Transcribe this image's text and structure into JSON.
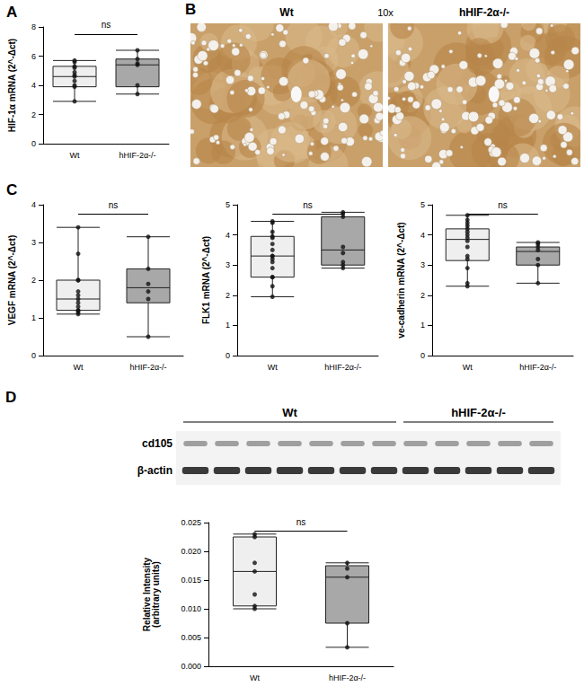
{
  "chart_data": [
    {
      "type": "boxplot",
      "title": "A",
      "categories": [
        "Wt",
        "hHIF-2α-/-"
      ],
      "ylabel": "HIF-1α mRNA (2^-Δct)",
      "ylim": [
        0,
        8
      ],
      "yticks": [
        0,
        2,
        4,
        6,
        8
      ],
      "boxes": [
        [
          2.9,
          3.9,
          4.6,
          5.3,
          5.7
        ],
        [
          3.4,
          3.9,
          5.4,
          5.8,
          6.4
        ]
      ],
      "points": [
        [
          2.9,
          3.9,
          4.0,
          4.3,
          4.6,
          4.7,
          4.9,
          5.2,
          5.3,
          5.6,
          5.7
        ],
        [
          3.4,
          4.0,
          5.4,
          5.5,
          5.8,
          6.4
        ]
      ],
      "colors": [
        "#efefef",
        "#a8a8a8"
      ],
      "annotations": [
        "ns"
      ]
    },
    {
      "type": "boxplot",
      "title": "C",
      "categories": [
        "Wt",
        "hHIF-2α-/-"
      ],
      "ylabel": "VEGF mRNA (2^-Δct)",
      "ylim": [
        0,
        4
      ],
      "yticks": [
        0,
        1,
        2,
        3,
        4
      ],
      "boxes": [
        [
          1.1,
          1.2,
          1.5,
          2.0,
          3.4
        ],
        [
          0.5,
          1.4,
          1.8,
          2.3,
          3.15
        ]
      ],
      "points": [
        [
          1.1,
          1.15,
          1.2,
          1.2,
          1.3,
          1.4,
          1.5,
          1.6,
          1.7,
          2.0,
          2.0,
          2.7,
          3.4
        ],
        [
          0.5,
          1.5,
          1.7,
          1.9,
          2.3,
          3.15
        ]
      ],
      "colors": [
        "#efefef",
        "#a8a8a8"
      ],
      "annotations": [
        "ns"
      ]
    },
    {
      "type": "boxplot",
      "categories": [
        "Wt",
        "hHIF-2α-/-"
      ],
      "ylabel": "FLK1 mRNA (2^-Δct)",
      "ylim": [
        0,
        5
      ],
      "yticks": [
        0,
        1,
        2,
        3,
        4,
        5
      ],
      "boxes": [
        [
          1.95,
          2.6,
          3.3,
          3.95,
          4.45
        ],
        [
          2.9,
          3.0,
          3.5,
          4.6,
          4.75
        ]
      ],
      "points": [
        [
          1.95,
          2.3,
          2.6,
          2.6,
          2.9,
          3.1,
          3.2,
          3.3,
          3.3,
          3.5,
          3.7,
          3.9,
          3.95,
          4.1,
          4.4,
          4.45
        ],
        [
          2.9,
          3.0,
          3.1,
          3.4,
          3.6,
          4.6,
          4.7,
          4.75
        ]
      ],
      "colors": [
        "#efefef",
        "#a8a8a8"
      ],
      "annotations": [
        "ns"
      ]
    },
    {
      "type": "boxplot",
      "categories": [
        "Wt",
        "hHIF-2α-/-"
      ],
      "ylabel": "ve-cadherin mRNA (2^-Δct)",
      "ylim": [
        0,
        5
      ],
      "yticks": [
        0,
        1,
        2,
        3,
        4,
        5
      ],
      "boxes": [
        [
          2.3,
          3.15,
          3.85,
          4.2,
          4.65
        ],
        [
          2.4,
          3.0,
          3.45,
          3.6,
          3.75
        ]
      ],
      "points": [
        [
          2.3,
          2.4,
          2.9,
          3.2,
          3.3,
          3.6,
          3.8,
          3.9,
          4.0,
          4.1,
          4.2,
          4.3,
          4.4,
          4.5,
          4.65
        ],
        [
          2.4,
          3.0,
          3.2,
          3.5,
          3.6,
          3.7,
          3.75
        ]
      ],
      "colors": [
        "#efefef",
        "#a8a8a8"
      ],
      "annotations": [
        "ns"
      ]
    },
    {
      "type": "boxplot",
      "categories": [
        "Wt",
        "hHIF-2α-/-"
      ],
      "ylabel": "Relative Intensity\n(arbitrary units)",
      "ylim": [
        0,
        0.025
      ],
      "yticks": [
        {
          "value": 0,
          "label": "0.000"
        },
        {
          "value": 0.005,
          "label": "0.005"
        },
        {
          "value": 0.01,
          "label": "0.010"
        },
        {
          "value": 0.015,
          "label": "0.015"
        },
        {
          "value": 0.02,
          "label": "0.020"
        },
        {
          "value": 0.025,
          "label": "0.025"
        }
      ],
      "boxes": [
        [
          0.01,
          0.0105,
          0.0165,
          0.0225,
          0.023
        ],
        [
          0.0033,
          0.0075,
          0.0155,
          0.0175,
          0.018
        ]
      ],
      "points": [
        [
          0.01,
          0.0105,
          0.0125,
          0.0165,
          0.018,
          0.0225,
          0.023
        ],
        [
          0.0033,
          0.0075,
          0.0155,
          0.017,
          0.018
        ]
      ],
      "colors": [
        "#efefef",
        "#a8a8a8"
      ],
      "annotations": [
        "ns"
      ]
    }
  ],
  "micrograph": {
    "label": "B",
    "magnification": "10x",
    "groups": [
      "Wt",
      "hHIF-2α-/-"
    ]
  },
  "blot": {
    "label": "D",
    "groups": [
      "Wt",
      "hHIF-2α-/-"
    ],
    "lanes": [
      7,
      5
    ],
    "rows": [
      "cd105",
      "β-actin"
    ]
  }
}
